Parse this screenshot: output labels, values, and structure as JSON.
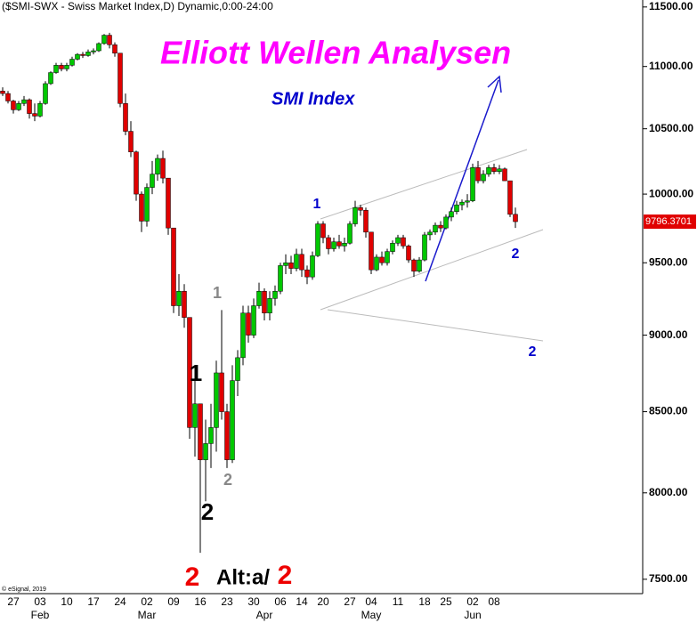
{
  "chart_data": {
    "type": "candlestick",
    "header": "($SMI-SWX - Swiss Market Index,D) Dynamic,0:00-24:00",
    "title": "Elliott Wellen Analysen",
    "subtitle": "SMI Index",
    "copyright": "© eSignal, 2019",
    "title_color": "#ff00ff",
    "subtitle_color": "#0000cc",
    "up_color": "#00c800",
    "down_color": "#e00000",
    "log_scale": true,
    "grid": false,
    "ylim": [
      7420,
      11560
    ],
    "yticks": [
      {
        "value": 11500,
        "label": "11500.00"
      },
      {
        "value": 11000,
        "label": "11000.00"
      },
      {
        "value": 10500,
        "label": "10500.00"
      },
      {
        "value": 10000,
        "label": "10000.00"
      },
      {
        "value": 9500,
        "label": "9500.00"
      },
      {
        "value": 9000,
        "label": "9000.00"
      },
      {
        "value": 8500,
        "label": "8500.00"
      },
      {
        "value": 8000,
        "label": "8000.00"
      },
      {
        "value": 7500,
        "label": "7500.00"
      }
    ],
    "last_price": 9796.3701,
    "categories": [
      null,
      null,
      "27",
      null,
      null,
      null,
      null,
      "03",
      null,
      null,
      null,
      null,
      "10",
      null,
      null,
      null,
      null,
      "17",
      null,
      null,
      null,
      null,
      "24",
      null,
      null,
      null,
      null,
      "02",
      null,
      null,
      null,
      null,
      "09",
      null,
      null,
      null,
      null,
      "16",
      null,
      null,
      null,
      null,
      "23",
      null,
      null,
      null,
      null,
      "30",
      null,
      null,
      null,
      null,
      "06",
      null,
      null,
      null,
      "14",
      null,
      null,
      null,
      "20",
      null,
      null,
      null,
      null,
      "27",
      null,
      null,
      null,
      "04",
      null,
      null,
      null,
      null,
      "11",
      null,
      null,
      null,
      null,
      "18",
      null,
      null,
      null,
      "25",
      null,
      null,
      null,
      null,
      "02",
      null,
      null,
      null,
      "08",
      null,
      null,
      null,
      null
    ],
    "months": [
      null,
      null,
      null,
      null,
      null,
      null,
      null,
      "Feb",
      null,
      null,
      null,
      null,
      null,
      null,
      null,
      null,
      null,
      null,
      null,
      null,
      null,
      null,
      null,
      null,
      null,
      null,
      null,
      "Mar",
      null,
      null,
      null,
      null,
      null,
      null,
      null,
      null,
      null,
      null,
      null,
      null,
      null,
      null,
      null,
      null,
      null,
      null,
      null,
      null,
      null,
      "Apr",
      null,
      null,
      null,
      null,
      null,
      null,
      null,
      null,
      null,
      null,
      null,
      null,
      null,
      null,
      null,
      null,
      null,
      null,
      null,
      "May",
      null,
      null,
      null,
      null,
      null,
      null,
      null,
      null,
      null,
      null,
      null,
      null,
      null,
      null,
      null,
      null,
      null,
      null,
      "Jun",
      null,
      null,
      null,
      null,
      null,
      null,
      null,
      null
    ],
    "open": [
      10800,
      10780,
      10720,
      10650,
      10700,
      10730,
      10620,
      10600,
      10700,
      10860,
      10950,
      11010,
      10980,
      11010,
      11060,
      11100,
      11090,
      11120,
      11130,
      11190,
      11260,
      11180,
      11110,
      10700,
      10480,
      10320,
      10000,
      9800,
      10050,
      10150,
      10270,
      10120,
      9750,
      9200,
      9300,
      9120,
      8400,
      8550,
      8200,
      8300,
      8400,
      8750,
      8500,
      8200,
      8700,
      8850,
      9150,
      9000,
      9200,
      9300,
      9150,
      9250,
      9300,
      9480,
      9500,
      9460,
      9560,
      9450,
      9400,
      9550,
      9780,
      9680,
      9600,
      9650,
      9620,
      9640,
      9780,
      9900,
      9880,
      9720,
      9450,
      9540,
      9500,
      9580,
      9640,
      9680,
      9620,
      9520,
      9440,
      9520,
      9700,
      9720,
      9770,
      9750,
      9830,
      9870,
      9920,
      9940,
      9950,
      10200,
      10100,
      10150,
      10200,
      10170,
      10190,
      10100,
      9850
    ],
    "high": [
      10830,
      10800,
      10730,
      10720,
      10760,
      10740,
      10700,
      10720,
      10880,
      10960,
      11030,
      11030,
      11030,
      11080,
      11110,
      11120,
      11140,
      11150,
      11200,
      11270,
      11280,
      11200,
      11110,
      10780,
      10560,
      10330,
      10020,
      10080,
      10250,
      10300,
      10330,
      10120,
      9750,
      9420,
      9350,
      9120,
      8800,
      8550,
      8450,
      8550,
      8830,
      9170,
      8550,
      8800,
      8900,
      9200,
      9200,
      9250,
      9360,
      9320,
      9300,
      9340,
      9500,
      9560,
      9550,
      9600,
      9600,
      9480,
      9580,
      9800,
      9800,
      9700,
      9680,
      9700,
      9680,
      9800,
      9950,
      9920,
      9900,
      9720,
      9560,
      9580,
      9600,
      9660,
      9700,
      9700,
      9630,
      9530,
      9540,
      9720,
      9740,
      9790,
      9800,
      9850,
      9900,
      9950,
      9960,
      10000,
      10230,
      10250,
      10180,
      10220,
      10230,
      10220,
      10200,
      10100,
      9900
    ],
    "low": [
      10760,
      10700,
      10620,
      10640,
      10680,
      10580,
      10560,
      10590,
      10690,
      10850,
      10940,
      10960,
      10960,
      11000,
      11050,
      11070,
      11080,
      11100,
      11120,
      11180,
      11150,
      11080,
      10670,
      10450,
      10280,
      9950,
      9720,
      9760,
      10000,
      10100,
      10080,
      9700,
      9150,
      9130,
      9050,
      8330,
      8220,
      7650,
      7950,
      8150,
      8250,
      8450,
      8150,
      8180,
      8600,
      8800,
      8950,
      8980,
      9180,
      9100,
      9100,
      9200,
      9280,
      9420,
      9420,
      9440,
      9400,
      9350,
      9380,
      9540,
      9640,
      9560,
      9580,
      9600,
      9580,
      9630,
      9760,
      9840,
      9680,
      9420,
      9440,
      9480,
      9480,
      9560,
      9620,
      9600,
      9500,
      9400,
      9430,
      9510,
      9660,
      9700,
      9720,
      9740,
      9800,
      9850,
      9880,
      9900,
      9940,
      10080,
      10080,
      10130,
      10150,
      10150,
      10100,
      9830,
      9750
    ],
    "close": [
      10780,
      10720,
      10650,
      10700,
      10730,
      10620,
      10600,
      10700,
      10860,
      10950,
      11010,
      10980,
      11010,
      11060,
      11100,
      11090,
      11120,
      11130,
      11190,
      11260,
      11180,
      11110,
      10700,
      10480,
      10320,
      10000,
      9800,
      10050,
      10150,
      10270,
      10120,
      9750,
      9200,
      9300,
      9120,
      8400,
      8550,
      8200,
      8300,
      8400,
      8750,
      8500,
      8200,
      8700,
      8850,
      9150,
      9000,
      9200,
      9300,
      9150,
      9250,
      9300,
      9480,
      9500,
      9460,
      9560,
      9450,
      9400,
      9550,
      9780,
      9680,
      9600,
      9650,
      9620,
      9640,
      9780,
      9900,
      9880,
      9720,
      9450,
      9540,
      9500,
      9580,
      9640,
      9680,
      9620,
      9520,
      9440,
      9520,
      9700,
      9720,
      9770,
      9750,
      9830,
      9870,
      9920,
      9940,
      9950,
      10200,
      10100,
      10150,
      10200,
      10170,
      10190,
      10100,
      9850,
      9796.3701
    ],
    "annotations": [
      {
        "text": "1",
        "color": "#0000cc"
      },
      {
        "text": "2",
        "color": "#0000cc"
      },
      {
        "text": "2",
        "color": "#0000cc"
      },
      {
        "text": "1",
        "color": "#888888"
      },
      {
        "text": "2",
        "color": "#888888"
      },
      {
        "text": "1",
        "color": "#000000"
      },
      {
        "text": "2",
        "color": "#000000"
      },
      {
        "text": "2",
        "color": "#ee0000"
      },
      {
        "text": "Alt:a/",
        "color": "#000000"
      },
      {
        "text": "2",
        "color": "#ee0000"
      }
    ]
  }
}
